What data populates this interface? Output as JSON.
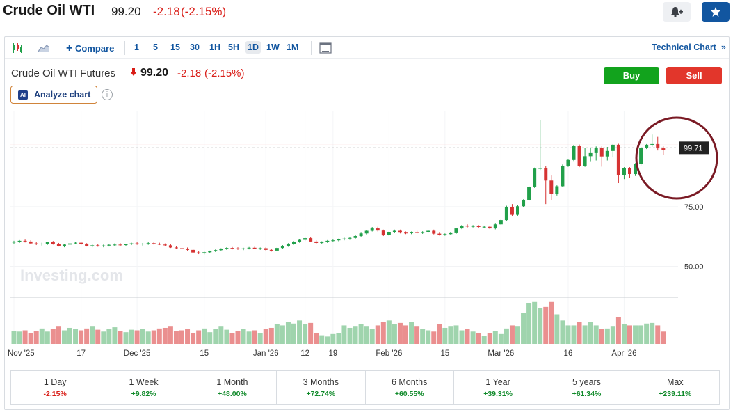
{
  "header": {
    "title": "Crude Oil WTI",
    "price": "99.20",
    "change": "-2.18",
    "change_pct": "(-2.15%)"
  },
  "toolbar": {
    "compare_label": "Compare",
    "intervals": [
      "1",
      "5",
      "15",
      "30",
      "1H",
      "5H",
      "1D",
      "1W",
      "1M"
    ],
    "active_interval": "1D",
    "technical_label": "Technical Chart"
  },
  "instrument": {
    "name": "Crude Oil WTI Futures",
    "price": "99.20",
    "change": "-2.18",
    "change_pct": "(-2.15%)"
  },
  "analyze_label": "Analyze chart",
  "ai_badge": "AI",
  "buy_label": "Buy",
  "sell_label": "Sell",
  "watermark": "Investing.com",
  "colors": {
    "up": "#21a04a",
    "down": "#d63333",
    "volume_up": "#9fd4ad",
    "volume_down": "#ea8f8f",
    "accent": "#1256a0",
    "annotation": "#7a1a24"
  },
  "chart_data": {
    "type": "candlestick",
    "y_ticks": [
      {
        "value": 75,
        "label": "75.00"
      },
      {
        "value": 50,
        "label": "50.00"
      }
    ],
    "ylim": [
      37,
      115
    ],
    "last_price_label": "99.71",
    "x_tick_labels": [
      {
        "index": 0,
        "label": "Nov '25"
      },
      {
        "index": 12,
        "label": "17"
      },
      {
        "index": 22,
        "label": "Dec '25"
      },
      {
        "index": 34,
        "label": "15"
      },
      {
        "index": 45,
        "label": "Jan '26"
      },
      {
        "index": 52,
        "label": "12"
      },
      {
        "index": 57,
        "label": "19"
      },
      {
        "index": 67,
        "label": "Feb '26"
      },
      {
        "index": 77,
        "label": "15"
      },
      {
        "index": 87,
        "label": "Mar '26"
      },
      {
        "index": 99,
        "label": "16"
      },
      {
        "index": 109,
        "label": "Apr '26"
      }
    ],
    "candles": [
      {
        "o": 60.0,
        "h": 60.7,
        "l": 59.4,
        "c": 60.3
      },
      {
        "o": 60.3,
        "h": 61.0,
        "l": 59.8,
        "c": 60.7
      },
      {
        "o": 60.7,
        "h": 61.2,
        "l": 60.0,
        "c": 60.4
      },
      {
        "o": 60.4,
        "h": 60.9,
        "l": 59.3,
        "c": 59.6
      },
      {
        "o": 59.6,
        "h": 60.1,
        "l": 58.9,
        "c": 59.3
      },
      {
        "o": 59.3,
        "h": 59.9,
        "l": 58.7,
        "c": 59.5
      },
      {
        "o": 59.5,
        "h": 60.3,
        "l": 59.0,
        "c": 60.1
      },
      {
        "o": 60.1,
        "h": 60.6,
        "l": 59.1,
        "c": 59.4
      },
      {
        "o": 59.4,
        "h": 59.8,
        "l": 58.3,
        "c": 58.6
      },
      {
        "o": 58.6,
        "h": 59.4,
        "l": 58.0,
        "c": 59.1
      },
      {
        "o": 59.1,
        "h": 59.9,
        "l": 58.6,
        "c": 59.6
      },
      {
        "o": 59.6,
        "h": 60.3,
        "l": 59.2,
        "c": 59.9
      },
      {
        "o": 59.9,
        "h": 60.4,
        "l": 58.9,
        "c": 59.2
      },
      {
        "o": 59.2,
        "h": 59.7,
        "l": 58.3,
        "c": 58.6
      },
      {
        "o": 58.6,
        "h": 59.2,
        "l": 58.0,
        "c": 58.8
      },
      {
        "o": 58.8,
        "h": 59.3,
        "l": 58.2,
        "c": 58.5
      },
      {
        "o": 58.5,
        "h": 59.1,
        "l": 58.0,
        "c": 58.7
      },
      {
        "o": 58.7,
        "h": 59.3,
        "l": 58.3,
        "c": 59.0
      },
      {
        "o": 59.0,
        "h": 59.6,
        "l": 58.6,
        "c": 59.1
      },
      {
        "o": 59.1,
        "h": 59.7,
        "l": 58.5,
        "c": 58.9
      },
      {
        "o": 58.9,
        "h": 59.5,
        "l": 58.4,
        "c": 59.3
      },
      {
        "o": 59.3,
        "h": 59.9,
        "l": 58.9,
        "c": 59.6
      },
      {
        "o": 59.6,
        "h": 60.1,
        "l": 59.0,
        "c": 59.2
      },
      {
        "o": 59.2,
        "h": 59.8,
        "l": 58.7,
        "c": 59.5
      },
      {
        "o": 59.5,
        "h": 60.1,
        "l": 59.0,
        "c": 59.7
      },
      {
        "o": 59.7,
        "h": 60.2,
        "l": 59.1,
        "c": 59.4
      },
      {
        "o": 59.4,
        "h": 59.9,
        "l": 58.9,
        "c": 59.1
      },
      {
        "o": 59.1,
        "h": 59.6,
        "l": 58.5,
        "c": 58.8
      },
      {
        "o": 58.8,
        "h": 59.2,
        "l": 57.7,
        "c": 57.9
      },
      {
        "o": 57.9,
        "h": 58.4,
        "l": 57.3,
        "c": 57.6
      },
      {
        "o": 57.6,
        "h": 58.1,
        "l": 57.0,
        "c": 57.4
      },
      {
        "o": 57.4,
        "h": 57.9,
        "l": 56.6,
        "c": 56.9
      },
      {
        "o": 56.9,
        "h": 57.2,
        "l": 55.5,
        "c": 55.8
      },
      {
        "o": 55.8,
        "h": 56.3,
        "l": 55.1,
        "c": 55.4
      },
      {
        "o": 55.4,
        "h": 56.2,
        "l": 55.0,
        "c": 55.9
      },
      {
        "o": 55.9,
        "h": 56.6,
        "l": 55.5,
        "c": 56.3
      },
      {
        "o": 56.3,
        "h": 57.1,
        "l": 56.0,
        "c": 56.8
      },
      {
        "o": 56.8,
        "h": 57.6,
        "l": 56.4,
        "c": 57.3
      },
      {
        "o": 57.3,
        "h": 58.0,
        "l": 56.9,
        "c": 57.7
      },
      {
        "o": 57.7,
        "h": 58.1,
        "l": 57.1,
        "c": 57.5
      },
      {
        "o": 57.5,
        "h": 58.0,
        "l": 56.9,
        "c": 57.2
      },
      {
        "o": 57.2,
        "h": 57.8,
        "l": 56.8,
        "c": 57.5
      },
      {
        "o": 57.5,
        "h": 58.1,
        "l": 57.1,
        "c": 57.8
      },
      {
        "o": 57.8,
        "h": 58.2,
        "l": 57.2,
        "c": 57.4
      },
      {
        "o": 57.4,
        "h": 57.9,
        "l": 56.9,
        "c": 57.6
      },
      {
        "o": 57.6,
        "h": 58.0,
        "l": 56.6,
        "c": 56.9
      },
      {
        "o": 56.9,
        "h": 57.3,
        "l": 56.2,
        "c": 56.6
      },
      {
        "o": 56.6,
        "h": 57.9,
        "l": 56.3,
        "c": 57.7
      },
      {
        "o": 57.7,
        "h": 58.9,
        "l": 57.4,
        "c": 58.6
      },
      {
        "o": 58.6,
        "h": 59.7,
        "l": 58.2,
        "c": 59.5
      },
      {
        "o": 59.5,
        "h": 60.5,
        "l": 59.1,
        "c": 60.2
      },
      {
        "o": 60.2,
        "h": 61.4,
        "l": 59.9,
        "c": 61.1
      },
      {
        "o": 61.1,
        "h": 62.1,
        "l": 60.6,
        "c": 61.8
      },
      {
        "o": 61.8,
        "h": 62.3,
        "l": 60.1,
        "c": 60.4
      },
      {
        "o": 60.4,
        "h": 60.9,
        "l": 59.4,
        "c": 59.8
      },
      {
        "o": 59.8,
        "h": 60.5,
        "l": 59.4,
        "c": 60.2
      },
      {
        "o": 60.2,
        "h": 61.0,
        "l": 59.8,
        "c": 60.7
      },
      {
        "o": 60.7,
        "h": 61.3,
        "l": 60.2,
        "c": 60.9
      },
      {
        "o": 60.9,
        "h": 61.6,
        "l": 60.5,
        "c": 61.3
      },
      {
        "o": 61.3,
        "h": 62.0,
        "l": 60.9,
        "c": 61.6
      },
      {
        "o": 61.6,
        "h": 62.3,
        "l": 61.1,
        "c": 61.9
      },
      {
        "o": 61.9,
        "h": 63.0,
        "l": 61.6,
        "c": 62.7
      },
      {
        "o": 62.7,
        "h": 64.1,
        "l": 62.4,
        "c": 63.8
      },
      {
        "o": 63.8,
        "h": 65.3,
        "l": 63.4,
        "c": 64.9
      },
      {
        "o": 64.9,
        "h": 66.5,
        "l": 64.6,
        "c": 65.9
      },
      {
        "o": 65.9,
        "h": 66.6,
        "l": 64.6,
        "c": 65.0
      },
      {
        "o": 65.0,
        "h": 65.4,
        "l": 62.7,
        "c": 63.1
      },
      {
        "o": 63.1,
        "h": 64.6,
        "l": 62.8,
        "c": 64.2
      },
      {
        "o": 64.2,
        "h": 65.4,
        "l": 63.9,
        "c": 64.9
      },
      {
        "o": 64.9,
        "h": 65.4,
        "l": 63.8,
        "c": 64.1
      },
      {
        "o": 64.1,
        "h": 64.6,
        "l": 63.5,
        "c": 63.9
      },
      {
        "o": 63.9,
        "h": 64.6,
        "l": 63.5,
        "c": 64.3
      },
      {
        "o": 64.3,
        "h": 64.9,
        "l": 63.8,
        "c": 64.0
      },
      {
        "o": 64.0,
        "h": 64.7,
        "l": 63.6,
        "c": 64.4
      },
      {
        "o": 64.4,
        "h": 65.3,
        "l": 64.1,
        "c": 64.9
      },
      {
        "o": 64.9,
        "h": 65.4,
        "l": 63.4,
        "c": 63.7
      },
      {
        "o": 63.7,
        "h": 64.1,
        "l": 62.9,
        "c": 63.2
      },
      {
        "o": 63.2,
        "h": 63.8,
        "l": 62.8,
        "c": 63.5
      },
      {
        "o": 63.5,
        "h": 64.2,
        "l": 63.1,
        "c": 63.9
      },
      {
        "o": 63.9,
        "h": 66.2,
        "l": 63.6,
        "c": 65.9
      },
      {
        "o": 65.9,
        "h": 67.4,
        "l": 65.6,
        "c": 67.1
      },
      {
        "o": 67.1,
        "h": 67.6,
        "l": 66.3,
        "c": 66.7
      },
      {
        "o": 66.7,
        "h": 67.3,
        "l": 66.3,
        "c": 66.9
      },
      {
        "o": 66.9,
        "h": 67.3,
        "l": 66.2,
        "c": 66.5
      },
      {
        "o": 66.5,
        "h": 67.1,
        "l": 66.0,
        "c": 66.6
      },
      {
        "o": 66.6,
        "h": 67.1,
        "l": 65.6,
        "c": 65.9
      },
      {
        "o": 65.9,
        "h": 67.9,
        "l": 65.5,
        "c": 67.6
      },
      {
        "o": 67.6,
        "h": 69.6,
        "l": 67.4,
        "c": 69.4
      },
      {
        "o": 69.4,
        "h": 75.4,
        "l": 69.1,
        "c": 74.9
      },
      {
        "o": 74.9,
        "h": 76.1,
        "l": 71.1,
        "c": 71.6
      },
      {
        "o": 71.6,
        "h": 75.6,
        "l": 71.2,
        "c": 75.2
      },
      {
        "o": 75.2,
        "h": 78.1,
        "l": 74.9,
        "c": 77.8
      },
      {
        "o": 77.8,
        "h": 83.6,
        "l": 77.5,
        "c": 83.2
      },
      {
        "o": 83.2,
        "h": 91.4,
        "l": 82.9,
        "c": 91.0
      },
      {
        "o": 91.0,
        "h": 111.5,
        "l": 90.4,
        "c": 91.2
      },
      {
        "o": 91.2,
        "h": 92.1,
        "l": 76.1,
        "c": 86.0
      },
      {
        "o": 86.0,
        "h": 88.1,
        "l": 77.8,
        "c": 80.3
      },
      {
        "o": 80.3,
        "h": 84.0,
        "l": 79.7,
        "c": 83.6
      },
      {
        "o": 83.6,
        "h": 92.7,
        "l": 83.2,
        "c": 92.2
      },
      {
        "o": 92.2,
        "h": 95.1,
        "l": 91.7,
        "c": 94.6
      },
      {
        "o": 94.6,
        "h": 100.8,
        "l": 93.9,
        "c": 100.4
      },
      {
        "o": 100.4,
        "h": 101.1,
        "l": 91.6,
        "c": 92.1
      },
      {
        "o": 92.1,
        "h": 99.6,
        "l": 91.7,
        "c": 96.2
      },
      {
        "o": 96.2,
        "h": 99.8,
        "l": 93.8,
        "c": 97.5
      },
      {
        "o": 97.5,
        "h": 100.3,
        "l": 94.4,
        "c": 99.8
      },
      {
        "o": 99.8,
        "h": 100.3,
        "l": 91.8,
        "c": 96.1
      },
      {
        "o": 96.1,
        "h": 100.1,
        "l": 94.4,
        "c": 98.4
      },
      {
        "o": 98.4,
        "h": 101.3,
        "l": 95.7,
        "c": 101.0
      },
      {
        "o": 101.0,
        "h": 101.4,
        "l": 84.9,
        "c": 88.3
      },
      {
        "o": 88.3,
        "h": 91.6,
        "l": 86.6,
        "c": 91.1
      },
      {
        "o": 91.1,
        "h": 91.6,
        "l": 87.2,
        "c": 88.7
      },
      {
        "o": 88.7,
        "h": 93.3,
        "l": 87.9,
        "c": 92.9
      },
      {
        "o": 92.9,
        "h": 100.1,
        "l": 92.3,
        "c": 99.7
      },
      {
        "o": 99.7,
        "h": 101.3,
        "l": 99.2,
        "c": 101.0
      },
      {
        "o": 101.0,
        "h": 105.3,
        "l": 100.2,
        "c": 101.3
      },
      {
        "o": 101.3,
        "h": 104.3,
        "l": 98.6,
        "c": 99.5
      },
      {
        "o": 99.5,
        "h": 100.3,
        "l": 96.8,
        "c": 98.8
      }
    ],
    "volume": [
      0.21,
      0.2,
      0.22,
      0.18,
      0.21,
      0.25,
      0.2,
      0.24,
      0.28,
      0.22,
      0.26,
      0.24,
      0.22,
      0.25,
      0.28,
      0.23,
      0.2,
      0.24,
      0.27,
      0.21,
      0.19,
      0.23,
      0.22,
      0.24,
      0.2,
      0.22,
      0.25,
      0.26,
      0.28,
      0.21,
      0.22,
      0.24,
      0.18,
      0.22,
      0.25,
      0.19,
      0.24,
      0.28,
      0.23,
      0.18,
      0.21,
      0.24,
      0.2,
      0.22,
      0.18,
      0.24,
      0.26,
      0.32,
      0.3,
      0.36,
      0.33,
      0.38,
      0.32,
      0.34,
      0.18,
      0.14,
      0.12,
      0.16,
      0.18,
      0.3,
      0.26,
      0.28,
      0.32,
      0.28,
      0.24,
      0.3,
      0.36,
      0.38,
      0.32,
      0.34,
      0.3,
      0.36,
      0.28,
      0.24,
      0.22,
      0.2,
      0.32,
      0.26,
      0.28,
      0.3,
      0.22,
      0.24,
      0.2,
      0.17,
      0.13,
      0.18,
      0.21,
      0.16,
      0.25,
      0.3,
      0.28,
      0.5,
      0.66,
      0.68,
      0.58,
      0.6,
      0.68,
      0.48,
      0.38,
      0.3,
      0.3,
      0.35,
      0.3,
      0.36,
      0.3,
      0.24,
      0.25,
      0.28,
      0.44,
      0.32,
      0.3,
      0.3,
      0.3,
      0.33,
      0.34,
      0.3,
      0.2
    ]
  },
  "ranges": [
    {
      "label": "1 Day",
      "value": "-2.15%",
      "dir": "down"
    },
    {
      "label": "1 Week",
      "value": "+9.82%",
      "dir": "up"
    },
    {
      "label": "1 Month",
      "value": "+48.00%",
      "dir": "up"
    },
    {
      "label": "3 Months",
      "value": "+72.74%",
      "dir": "up"
    },
    {
      "label": "6 Months",
      "value": "+60.55%",
      "dir": "up"
    },
    {
      "label": "1 Year",
      "value": "+39.31%",
      "dir": "up"
    },
    {
      "label": "5 years",
      "value": "+61.34%",
      "dir": "up"
    },
    {
      "label": "Max",
      "value": "+239.11%",
      "dir": "up"
    }
  ]
}
